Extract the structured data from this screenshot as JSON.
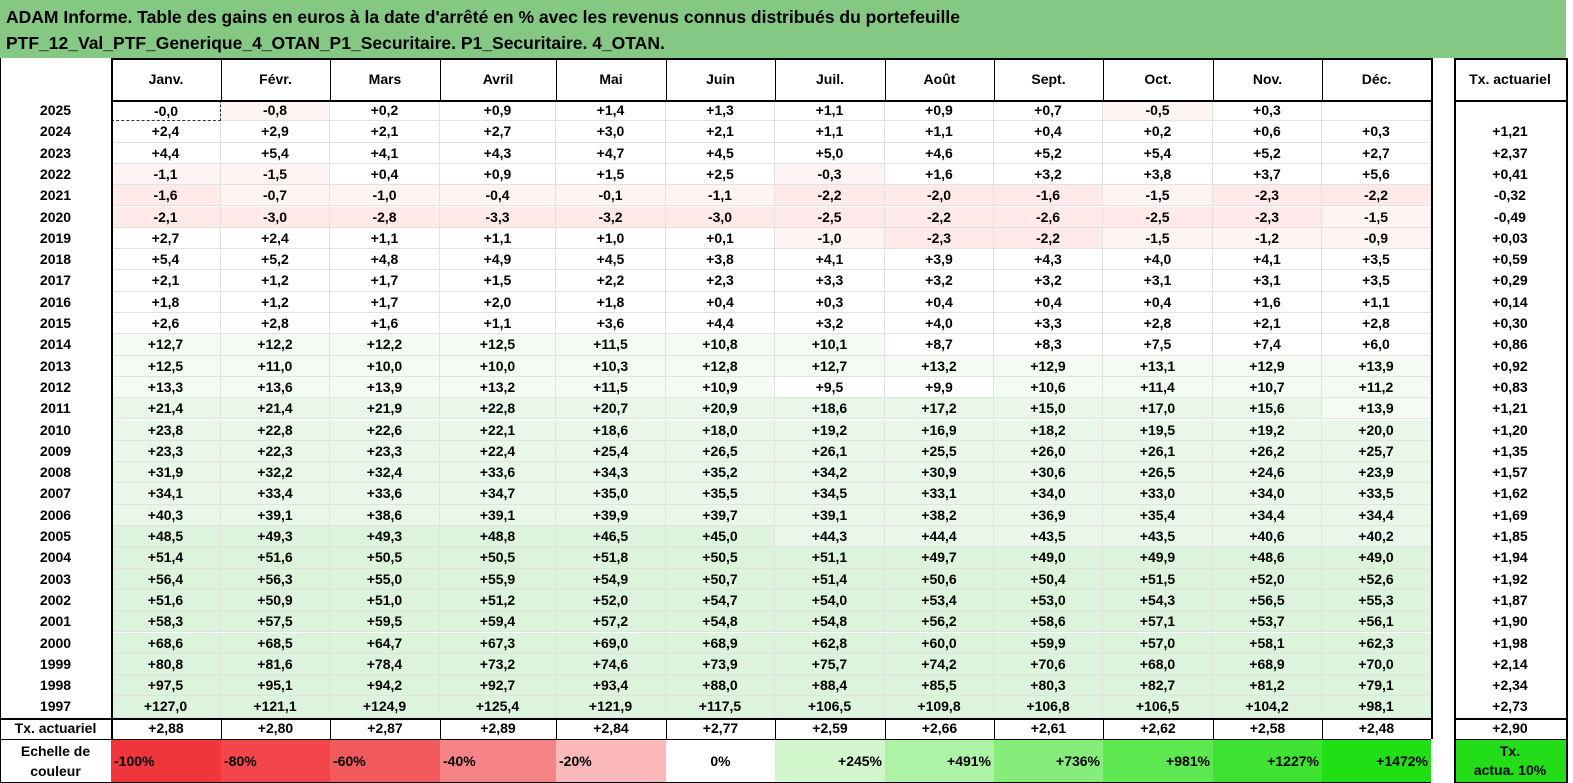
{
  "title": {
    "line1": "ADAM Informe. Table des gains en euros à la date d'arrêté en % avec les revenus connus distribués du portefeuille",
    "line2": "PTF_12_Val_PTF_Generique_4_OTAN_P1_Securitaire. P1_Securitaire. 4_OTAN."
  },
  "months": [
    "Janv.",
    "Févr.",
    "Mars",
    "Avril",
    "Mai",
    "Juin",
    "Juil.",
    "Août",
    "Sept.",
    "Oct.",
    "Nov.",
    "Déc."
  ],
  "tx_header": "Tx. actuariel",
  "colors": {
    "title_bg": "#84c884",
    "neg_light": "#fff4f4",
    "neg_mid": "#ffe9e9",
    "pos_light": "#f3fbf3",
    "pos_mid": "#e9f7e9",
    "pos_strong": "#dcf3dc"
  },
  "rows": [
    {
      "year": "2025",
      "values": [
        "-0,0",
        "-0,8",
        "+0,2",
        "+0,9",
        "+1,4",
        "+1,3",
        "+1,1",
        "+0,9",
        "+0,7",
        "-0,5",
        "+0,3",
        ""
      ],
      "tx": ""
    },
    {
      "year": "2024",
      "values": [
        "+2,4",
        "+2,9",
        "+2,1",
        "+2,7",
        "+3,0",
        "+2,1",
        "+1,1",
        "+1,1",
        "+0,4",
        "+0,2",
        "+0,6",
        "+0,3"
      ],
      "tx": "+1,21"
    },
    {
      "year": "2023",
      "values": [
        "+4,4",
        "+5,4",
        "+4,1",
        "+4,3",
        "+4,7",
        "+4,5",
        "+5,0",
        "+4,6",
        "+5,2",
        "+5,4",
        "+5,2",
        "+2,7"
      ],
      "tx": "+2,37"
    },
    {
      "year": "2022",
      "values": [
        "-1,1",
        "-1,5",
        "+0,4",
        "+0,9",
        "+1,5",
        "+2,5",
        "-0,3",
        "+1,6",
        "+3,2",
        "+3,8",
        "+3,7",
        "+5,6"
      ],
      "tx": "+0,41"
    },
    {
      "year": "2021",
      "values": [
        "-1,6",
        "-0,7",
        "-1,0",
        "-0,4",
        "-0,1",
        "-1,1",
        "-2,2",
        "-2,0",
        "-1,6",
        "-1,5",
        "-2,3",
        "-2,2"
      ],
      "tx": "-0,32"
    },
    {
      "year": "2020",
      "values": [
        "-2,1",
        "-3,0",
        "-2,8",
        "-3,3",
        "-3,2",
        "-3,0",
        "-2,5",
        "-2,2",
        "-2,6",
        "-2,5",
        "-2,3",
        "-1,5"
      ],
      "tx": "-0,49"
    },
    {
      "year": "2019",
      "values": [
        "+2,7",
        "+2,4",
        "+1,1",
        "+1,1",
        "+1,0",
        "+0,1",
        "-1,0",
        "-2,3",
        "-2,2",
        "-1,5",
        "-1,2",
        "-0,9"
      ],
      "tx": "+0,03"
    },
    {
      "year": "2018",
      "values": [
        "+5,4",
        "+5,2",
        "+4,8",
        "+4,9",
        "+4,5",
        "+3,8",
        "+4,1",
        "+3,9",
        "+4,3",
        "+4,0",
        "+4,1",
        "+3,5"
      ],
      "tx": "+0,59"
    },
    {
      "year": "2017",
      "values": [
        "+2,1",
        "+1,2",
        "+1,7",
        "+1,5",
        "+2,2",
        "+2,3",
        "+3,3",
        "+3,2",
        "+3,2",
        "+3,1",
        "+3,1",
        "+3,5"
      ],
      "tx": "+0,29"
    },
    {
      "year": "2016",
      "values": [
        "+1,8",
        "+1,2",
        "+1,7",
        "+2,0",
        "+1,8",
        "+0,4",
        "+0,3",
        "+0,4",
        "+0,4",
        "+0,4",
        "+1,6",
        "+1,1"
      ],
      "tx": "+0,14"
    },
    {
      "year": "2015",
      "values": [
        "+2,6",
        "+2,8",
        "+1,6",
        "+1,1",
        "+3,6",
        "+4,4",
        "+3,2",
        "+4,0",
        "+3,3",
        "+2,8",
        "+2,1",
        "+2,8"
      ],
      "tx": "+0,30"
    },
    {
      "year": "2014",
      "values": [
        "+12,7",
        "+12,2",
        "+12,2",
        "+12,5",
        "+11,5",
        "+10,8",
        "+10,1",
        "+8,7",
        "+8,3",
        "+7,5",
        "+7,4",
        "+6,0"
      ],
      "tx": "+0,86"
    },
    {
      "year": "2013",
      "values": [
        "+12,5",
        "+11,0",
        "+10,0",
        "+10,0",
        "+10,3",
        "+12,8",
        "+12,7",
        "+13,2",
        "+12,9",
        "+13,1",
        "+12,9",
        "+13,9"
      ],
      "tx": "+0,92"
    },
    {
      "year": "2012",
      "values": [
        "+13,3",
        "+13,6",
        "+13,9",
        "+13,2",
        "+11,5",
        "+10,9",
        "+9,5",
        "+9,9",
        "+10,6",
        "+11,4",
        "+10,7",
        "+11,2"
      ],
      "tx": "+0,83"
    },
    {
      "year": "2011",
      "values": [
        "+21,4",
        "+21,4",
        "+21,9",
        "+22,8",
        "+20,7",
        "+20,9",
        "+18,6",
        "+17,2",
        "+15,0",
        "+17,0",
        "+15,6",
        "+13,9"
      ],
      "tx": "+1,21"
    },
    {
      "year": "2010",
      "values": [
        "+23,8",
        "+22,8",
        "+22,6",
        "+22,1",
        "+18,6",
        "+18,0",
        "+19,2",
        "+16,9",
        "+18,2",
        "+19,5",
        "+19,2",
        "+20,0"
      ],
      "tx": "+1,20"
    },
    {
      "year": "2009",
      "values": [
        "+23,3",
        "+22,3",
        "+23,3",
        "+22,4",
        "+25,4",
        "+26,5",
        "+26,1",
        "+25,5",
        "+26,0",
        "+26,1",
        "+26,2",
        "+25,7"
      ],
      "tx": "+1,35"
    },
    {
      "year": "2008",
      "values": [
        "+31,9",
        "+32,2",
        "+32,4",
        "+33,6",
        "+34,3",
        "+35,2",
        "+34,2",
        "+30,9",
        "+30,6",
        "+26,5",
        "+24,6",
        "+23,9"
      ],
      "tx": "+1,57"
    },
    {
      "year": "2007",
      "values": [
        "+34,1",
        "+33,4",
        "+33,6",
        "+34,7",
        "+35,0",
        "+35,5",
        "+34,5",
        "+33,1",
        "+34,0",
        "+33,0",
        "+34,0",
        "+33,5"
      ],
      "tx": "+1,62"
    },
    {
      "year": "2006",
      "values": [
        "+40,3",
        "+39,1",
        "+38,6",
        "+39,1",
        "+39,9",
        "+39,7",
        "+39,1",
        "+38,2",
        "+36,9",
        "+35,4",
        "+34,4",
        "+34,4"
      ],
      "tx": "+1,69"
    },
    {
      "year": "2005",
      "values": [
        "+48,5",
        "+49,3",
        "+49,3",
        "+48,8",
        "+46,5",
        "+45,0",
        "+44,3",
        "+44,4",
        "+43,5",
        "+43,5",
        "+40,6",
        "+40,2"
      ],
      "tx": "+1,85"
    },
    {
      "year": "2004",
      "values": [
        "+51,4",
        "+51,6",
        "+50,5",
        "+50,5",
        "+51,8",
        "+50,5",
        "+51,1",
        "+49,7",
        "+49,0",
        "+49,9",
        "+48,6",
        "+49,0"
      ],
      "tx": "+1,94"
    },
    {
      "year": "2003",
      "values": [
        "+56,4",
        "+56,3",
        "+55,0",
        "+55,9",
        "+54,9",
        "+50,7",
        "+51,4",
        "+50,6",
        "+50,4",
        "+51,5",
        "+52,0",
        "+52,6"
      ],
      "tx": "+1,92"
    },
    {
      "year": "2002",
      "values": [
        "+51,6",
        "+50,9",
        "+51,0",
        "+51,2",
        "+52,0",
        "+54,7",
        "+54,0",
        "+53,4",
        "+53,0",
        "+54,3",
        "+56,5",
        "+55,3"
      ],
      "tx": "+1,87"
    },
    {
      "year": "2001",
      "values": [
        "+58,3",
        "+57,5",
        "+59,5",
        "+59,4",
        "+57,2",
        "+54,8",
        "+54,8",
        "+56,2",
        "+58,6",
        "+57,1",
        "+53,7",
        "+56,1"
      ],
      "tx": "+1,90"
    },
    {
      "year": "2000",
      "values": [
        "+68,6",
        "+68,5",
        "+64,7",
        "+67,3",
        "+69,0",
        "+68,9",
        "+62,8",
        "+60,0",
        "+59,9",
        "+57,0",
        "+58,1",
        "+62,3"
      ],
      "tx": "+1,98"
    },
    {
      "year": "1999",
      "values": [
        "+80,8",
        "+81,6",
        "+78,4",
        "+73,2",
        "+74,6",
        "+73,9",
        "+75,7",
        "+74,2",
        "+70,6",
        "+68,0",
        "+68,9",
        "+70,0"
      ],
      "tx": "+2,14"
    },
    {
      "year": "1998",
      "values": [
        "+97,5",
        "+95,1",
        "+94,2",
        "+92,7",
        "+93,4",
        "+88,0",
        "+88,4",
        "+85,5",
        "+80,3",
        "+82,7",
        "+81,2",
        "+79,1"
      ],
      "tx": "+2,34"
    },
    {
      "year": "1997",
      "values": [
        "+127,0",
        "+121,1",
        "+124,9",
        "+125,4",
        "+121,9",
        "+117,5",
        "+106,5",
        "+109,8",
        "+106,8",
        "+106,5",
        "+104,2",
        "+98,1"
      ],
      "tx": "+2,73"
    }
  ],
  "tx_row": {
    "label": "Tx. actuariel",
    "values": [
      "+2,88",
      "+2,80",
      "+2,87",
      "+2,89",
      "+2,84",
      "+2,77",
      "+2,59",
      "+2,66",
      "+2,61",
      "+2,62",
      "+2,58",
      "+2,48"
    ],
    "total": "+2,90"
  },
  "scale": {
    "label_line1": "Echelle de",
    "label_line2": "couleur",
    "items": [
      {
        "text": "-100%",
        "color": "#f0363c",
        "align": "left"
      },
      {
        "text": "-80%",
        "color": "#f2464a",
        "align": "left"
      },
      {
        "text": "-60%",
        "color": "#f35a5e",
        "align": "left"
      },
      {
        "text": "-40%",
        "color": "#f68486",
        "align": "left"
      },
      {
        "text": "-20%",
        "color": "#fab8b8",
        "align": "left"
      },
      {
        "text": "0%",
        "color": "#ffffff",
        "align": "center"
      },
      {
        "text": "+245%",
        "color": "#d2f7cc",
        "align": "right"
      },
      {
        "text": "+491%",
        "color": "#adf2a5",
        "align": "right"
      },
      {
        "text": "+736%",
        "color": "#86ed7b",
        "align": "right"
      },
      {
        "text": "+981%",
        "color": "#5ee852",
        "align": "right"
      },
      {
        "text": "+1227%",
        "color": "#3ee331",
        "align": "right"
      },
      {
        "text": "+1472%",
        "color": "#20df14",
        "align": "right"
      }
    ],
    "tx_label_line1": "Tx.",
    "tx_label_line2": "actua. 10%",
    "tx_color": "#22dd18"
  }
}
